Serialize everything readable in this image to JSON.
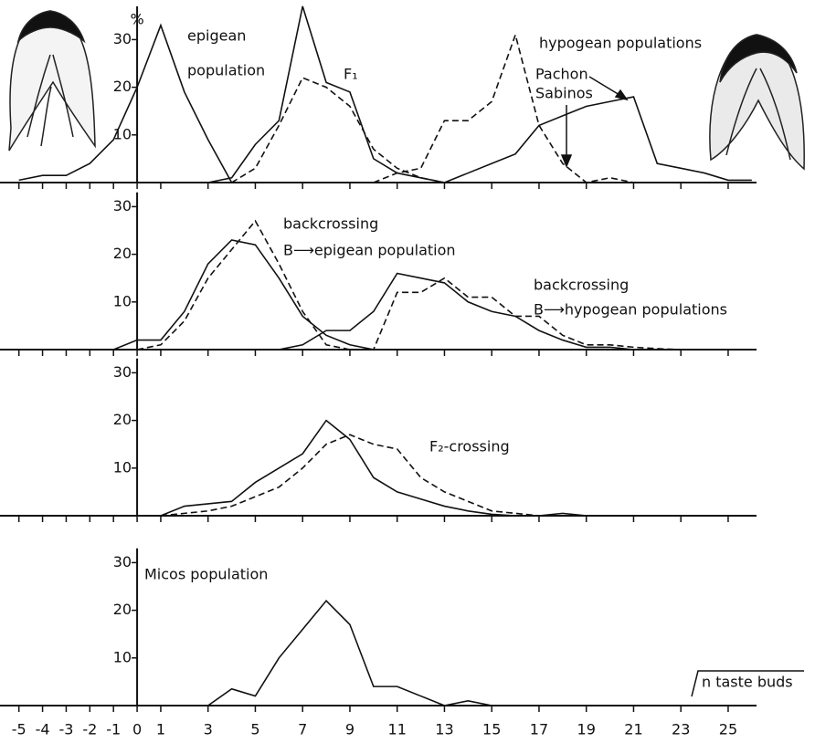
{
  "chart_data": [
    {
      "type": "line",
      "ylabel": "%",
      "xlim": [
        -5.8,
        26.2
      ],
      "ylim": [
        0,
        37
      ],
      "yticks": [
        10,
        20,
        30
      ],
      "annotations": [
        "epigean",
        "population",
        "F₁",
        "hypogean populations",
        "Pachon",
        "Sabinos"
      ],
      "series": [
        {
          "color": "#111",
          "dash": "solid",
          "x": [
            -5,
            -4,
            -3,
            -2,
            -1,
            0,
            1,
            2,
            3,
            4
          ],
          "values": [
            0.5,
            1.5,
            1.5,
            4,
            9,
            20,
            33,
            19,
            9,
            0
          ]
        },
        {
          "color": "#111",
          "dash": "solid",
          "x": [
            3,
            4,
            5,
            6,
            7,
            8,
            9,
            10,
            11,
            12,
            13
          ],
          "values": [
            0,
            1,
            8,
            13,
            37,
            21,
            19,
            5,
            2,
            1,
            0
          ]
        },
        {
          "color": "#111",
          "dash": "dashed",
          "x": [
            4,
            5,
            6,
            7,
            8,
            9,
            10,
            11,
            12,
            13
          ],
          "values": [
            0,
            3,
            12,
            22,
            20,
            16,
            7,
            3,
            1,
            0
          ]
        },
        {
          "color": "#111",
          "dash": "solid",
          "x": [
            13,
            14,
            15,
            16,
            17,
            18,
            19,
            20,
            21,
            22,
            23,
            24,
            25,
            26
          ],
          "values": [
            0,
            2,
            4,
            6,
            12,
            14,
            16,
            17,
            18,
            4,
            3,
            2,
            0.5,
            0.5
          ]
        },
        {
          "color": "#111",
          "dash": "dashed",
          "x": [
            10,
            11,
            12,
            13,
            14,
            15,
            16,
            17,
            18,
            19,
            20,
            21
          ],
          "values": [
            0,
            2,
            3,
            13,
            13,
            17,
            31,
            12,
            4,
            0,
            1,
            0
          ]
        }
      ]
    },
    {
      "type": "line",
      "xlim": [
        -5.8,
        26.2
      ],
      "ylim": [
        0,
        33
      ],
      "yticks": [
        10,
        20,
        30
      ],
      "annotations": [
        "backcrossing",
        "B⟶epigean population",
        "backcrossing",
        "B⟶hypogean populations"
      ],
      "series": [
        {
          "color": "#111",
          "dash": "solid",
          "x": [
            -1,
            0,
            1,
            2,
            3,
            4,
            5,
            6,
            7,
            8,
            9,
            10
          ],
          "values": [
            0,
            2,
            2,
            8,
            18,
            23,
            22,
            15,
            7,
            3,
            1,
            0
          ]
        },
        {
          "color": "#111",
          "dash": "dashed",
          "x": [
            0,
            1,
            2,
            3,
            4,
            5,
            6,
            7,
            8,
            9
          ],
          "values": [
            0,
            1,
            6,
            15,
            21,
            27,
            18,
            8,
            1,
            0
          ]
        },
        {
          "color": "#111",
          "dash": "solid",
          "x": [
            6,
            7,
            8,
            9,
            10,
            11,
            12,
            13,
            14,
            15,
            16,
            17,
            18,
            19,
            20,
            21
          ],
          "values": [
            0,
            1,
            4,
            4,
            8,
            16,
            15,
            14,
            10,
            8,
            7,
            4,
            2,
            0.5,
            0.5,
            0
          ]
        },
        {
          "color": "#111",
          "dash": "dashed",
          "x": [
            9,
            10,
            11,
            12,
            13,
            14,
            15,
            16,
            17,
            18,
            19,
            20,
            21,
            22,
            23
          ],
          "values": [
            0,
            0,
            12,
            12,
            15,
            11,
            11,
            7,
            7,
            3,
            1,
            1,
            0.5,
            0.2,
            0
          ]
        }
      ]
    },
    {
      "type": "line",
      "xlim": [
        -5.8,
        26.2
      ],
      "ylim": [
        0,
        33
      ],
      "yticks": [
        10,
        20,
        30
      ],
      "annotations": [
        "F₂-crossing"
      ],
      "series": [
        {
          "color": "#111",
          "dash": "solid",
          "x": [
            1,
            2,
            3,
            4,
            5,
            6,
            7,
            8,
            9,
            10,
            11,
            12,
            13,
            14,
            15,
            16,
            17,
            18,
            19
          ],
          "values": [
            0,
            2,
            2.5,
            3,
            7,
            10,
            13,
            20,
            16,
            8,
            5,
            3.5,
            2,
            1,
            0.3,
            0,
            0,
            0.5,
            0
          ]
        },
        {
          "color": "#111",
          "dash": "dashed",
          "x": [
            1,
            2,
            3,
            4,
            5,
            6,
            7,
            8,
            9,
            10,
            11,
            12,
            13,
            14,
            15,
            16,
            17
          ],
          "values": [
            0,
            0.5,
            1,
            2,
            4,
            6,
            10,
            15,
            17,
            15,
            14,
            8,
            5,
            3,
            1,
            0.5,
            0
          ]
        }
      ]
    },
    {
      "type": "line",
      "xlim": [
        -5.8,
        26.2
      ],
      "ylim": [
        0,
        33
      ],
      "yticks": [
        10,
        20,
        30
      ],
      "xlabel": "n taste buds",
      "xticks": [
        -5,
        -4,
        -3,
        -2,
        -1,
        0,
        1,
        3,
        5,
        7,
        9,
        11,
        13,
        15,
        17,
        19,
        21,
        23,
        25
      ],
      "annotations": [
        "Micos population"
      ],
      "series": [
        {
          "color": "#111",
          "dash": "solid",
          "x": [
            3,
            4,
            5,
            6,
            7,
            8,
            9,
            10,
            11,
            12,
            13,
            14,
            15
          ],
          "values": [
            0,
            3.5,
            2,
            10,
            16,
            22,
            17,
            4,
            4,
            2,
            0,
            1,
            0
          ]
        }
      ]
    }
  ]
}
